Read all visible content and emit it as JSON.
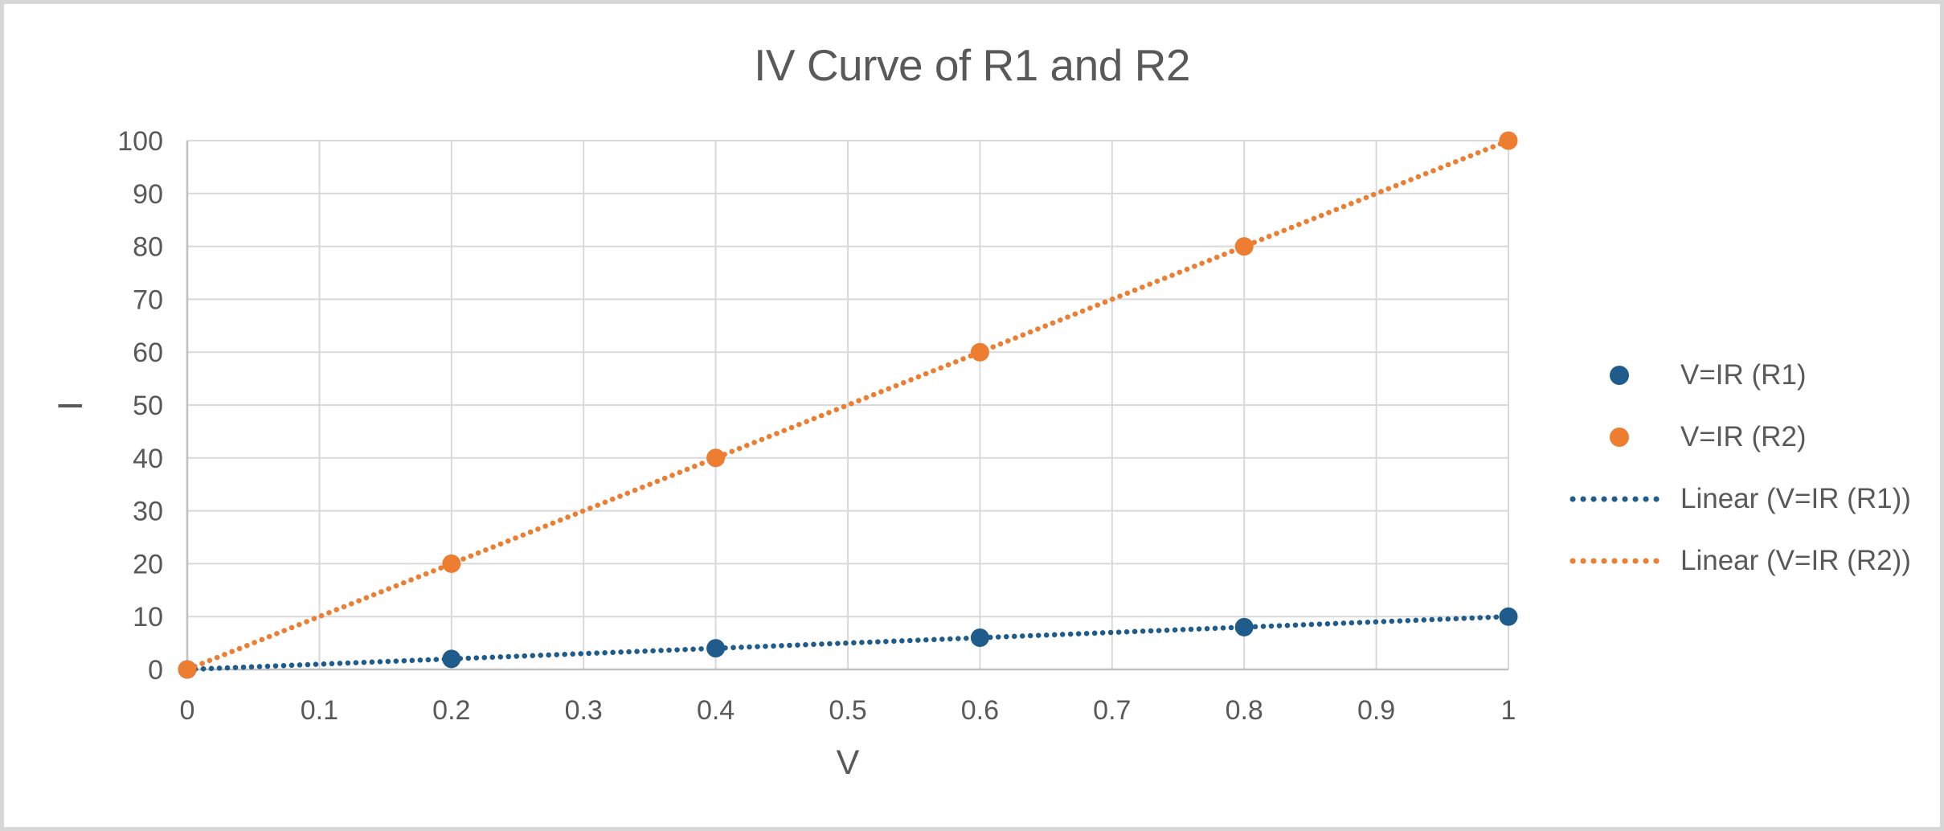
{
  "chart_data": {
    "type": "scatter",
    "title": "IV Curve of R1 and R2",
    "xlabel": "V",
    "ylabel": "I",
    "xlim": [
      0,
      1
    ],
    "ylim": [
      0,
      100
    ],
    "grid": true,
    "legend_position": "right",
    "x_ticks": {
      "values": [
        0,
        0.1,
        0.2,
        0.3,
        0.4,
        0.5,
        0.6,
        0.7,
        0.8,
        0.9,
        1
      ],
      "labels": [
        "0",
        "0.1",
        "0.2",
        "0.3",
        "0.4",
        "0.5",
        "0.6",
        "0.7",
        "0.8",
        "0.9",
        "1"
      ]
    },
    "y_ticks": {
      "values": [
        0,
        10,
        20,
        30,
        40,
        50,
        60,
        70,
        80,
        90,
        100
      ],
      "labels": [
        "0",
        "10",
        "20",
        "30",
        "40",
        "50",
        "60",
        "70",
        "80",
        "90",
        "100"
      ]
    },
    "series": [
      {
        "name": "V=IR (R1)",
        "color": "#1F5C8B",
        "marker": "circle",
        "points": [
          [
            0,
            0
          ],
          [
            0.2,
            2
          ],
          [
            0.4,
            4
          ],
          [
            0.6,
            6
          ],
          [
            0.8,
            8
          ],
          [
            1,
            10
          ]
        ]
      },
      {
        "name": "V=IR (R2)",
        "color": "#ED7D31",
        "marker": "circle",
        "points": [
          [
            0,
            0
          ],
          [
            0.2,
            20
          ],
          [
            0.4,
            40
          ],
          [
            0.6,
            60
          ],
          [
            0.8,
            80
          ],
          [
            1,
            100
          ]
        ]
      }
    ],
    "trendlines": [
      {
        "label": "Linear (V=IR (R1))",
        "color": "#1F5C8B",
        "style": "dotted",
        "points": [
          [
            0,
            0
          ],
          [
            1,
            10
          ]
        ]
      },
      {
        "label": "Linear (V=IR (R2))",
        "color": "#ED7D31",
        "style": "dotted",
        "points": [
          [
            0,
            0
          ],
          [
            1,
            100
          ]
        ]
      }
    ],
    "legend": [
      {
        "label": "V=IR (R1)",
        "marker": "dot",
        "color": "#1F5C8B"
      },
      {
        "label": "V=IR (R2)",
        "marker": "dot",
        "color": "#ED7D31"
      },
      {
        "label": "Linear (V=IR (R1))",
        "marker": "dotted-line",
        "color": "#1F5C8B"
      },
      {
        "label": "Linear (V=IR (R2))",
        "marker": "dotted-line",
        "color": "#ED7D31"
      }
    ]
  },
  "theme": {
    "background": "#FFFFFF",
    "frame_border": "#D7D7D7",
    "gridline": "#D9D9D9",
    "axis_line": "#BFBFBF",
    "text": "#595959"
  }
}
